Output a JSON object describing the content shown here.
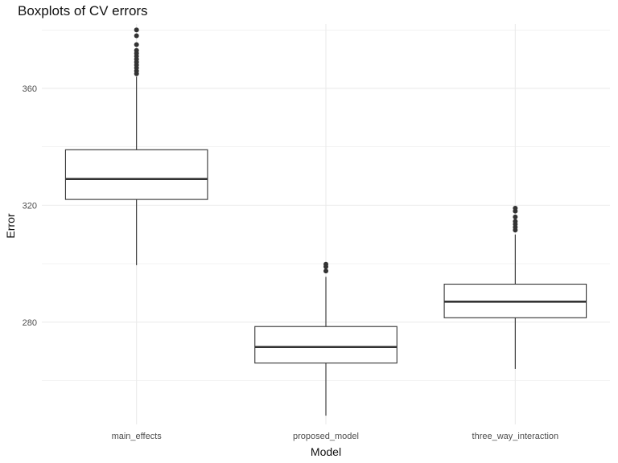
{
  "chart_data": {
    "type": "boxplot",
    "title": "Boxplots of CV errors",
    "xlabel": "Model",
    "ylabel": "Error",
    "categories": [
      "main_effects",
      "proposed_model",
      "three_way_interaction"
    ],
    "y_ticks": [
      280,
      320,
      360
    ],
    "ylim": [
      245,
      382
    ],
    "grid": true,
    "boxes": [
      {
        "name": "main_effects",
        "whisker_low": 299.5,
        "q1": 322,
        "median": 329,
        "q3": 339,
        "whisker_high": 364,
        "outliers": [
          365,
          366,
          367,
          368,
          369,
          370,
          371,
          372,
          373,
          375,
          378,
          380
        ]
      },
      {
        "name": "proposed_model",
        "whisker_low": 248,
        "q1": 266,
        "median": 271.5,
        "q3": 278.5,
        "whisker_high": 295.5,
        "outliers": [
          297.5,
          299,
          299.8
        ]
      },
      {
        "name": "three_way_interaction",
        "whisker_low": 264,
        "q1": 281.5,
        "median": 287,
        "q3": 293,
        "whisker_high": 310,
        "outliers": [
          311.5,
          312.5,
          313.5,
          314.5,
          316,
          318,
          319
        ]
      }
    ],
    "colors": {
      "grid": "#ebebeb",
      "box_stroke": "#333333",
      "outlier": "#333333",
      "background": "#ffffff"
    }
  }
}
